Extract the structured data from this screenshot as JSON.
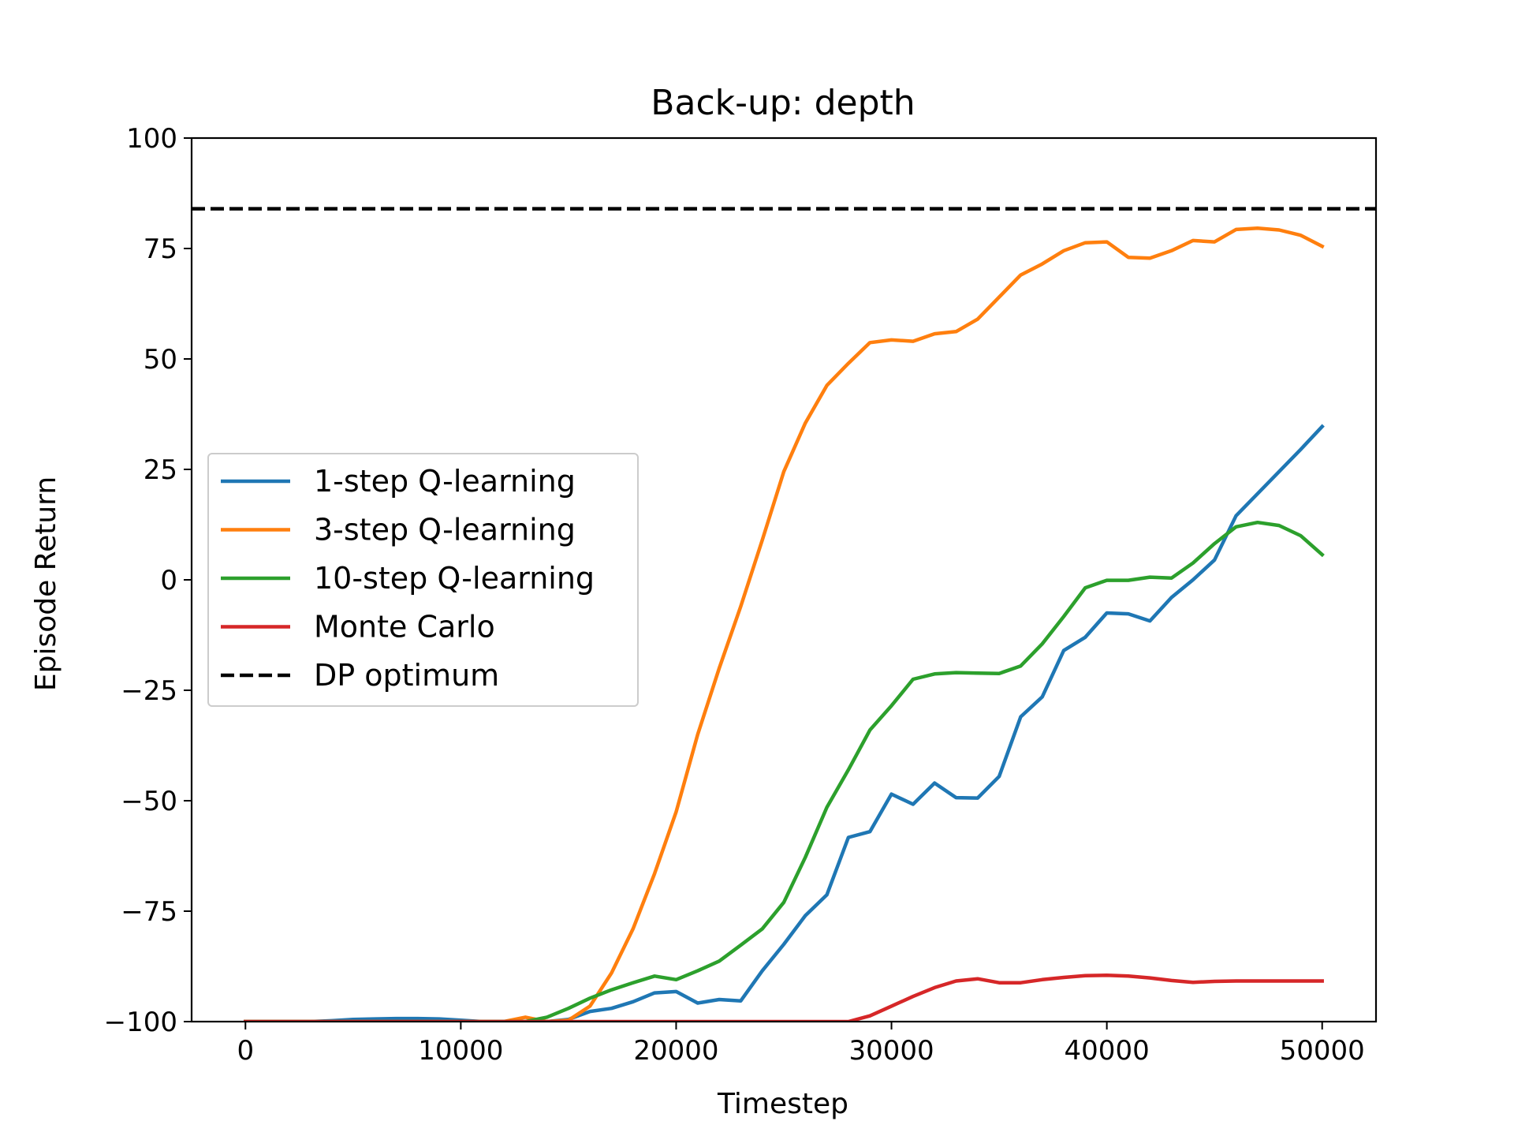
{
  "chart_data": {
    "type": "line",
    "title": "Back-up: depth",
    "xlabel": "Timestep",
    "ylabel": "Episode Return",
    "xlim": [
      -2500,
      52500
    ],
    "ylim": [
      -100,
      100
    ],
    "xticks": [
      0,
      10000,
      20000,
      30000,
      40000,
      50000
    ],
    "yticks": [
      -100,
      -75,
      -50,
      -25,
      0,
      25,
      50,
      75,
      100
    ],
    "xtick_labels": [
      "0",
      "10000",
      "20000",
      "30000",
      "40000",
      "50000"
    ],
    "ytick_labels": [
      "−100",
      "−75",
      "−50",
      "−25",
      "0",
      "25",
      "50",
      "75",
      "100"
    ],
    "grid": false,
    "legend_position": "center-left",
    "x": [
      0,
      1000,
      2000,
      3000,
      4000,
      5000,
      6000,
      7000,
      8000,
      9000,
      10000,
      11000,
      12000,
      13000,
      14000,
      15000,
      16000,
      17000,
      18000,
      19000,
      20000,
      21000,
      22000,
      23000,
      24000,
      25000,
      26000,
      27000,
      28000,
      29000,
      30000,
      31000,
      32000,
      33000,
      34000,
      35000,
      36000,
      37000,
      38000,
      39000,
      40000,
      41000,
      42000,
      43000,
      44000,
      45000,
      46000,
      47000,
      48000,
      49000,
      50000
    ],
    "series": [
      {
        "name": "1-step Q-learning",
        "color": "#1f77b4",
        "style": "solid",
        "values": [
          -100,
          -100,
          -100,
          -100,
          -99.8,
          -99.5,
          -99.4,
          -99.3,
          -99.3,
          -99.4,
          -99.7,
          -100,
          -100,
          -100,
          -100,
          -99.5,
          -97.7,
          -97,
          -95.5,
          -93.5,
          -93.2,
          -95.8,
          -95,
          -95.3,
          -88.5,
          -82.5,
          -76,
          -71.3,
          -58.3,
          -57,
          -48.5,
          -50.8,
          -46,
          -49.3,
          -49.4,
          -44.5,
          -31,
          -26.5,
          -16,
          -13,
          -7.5,
          -7.7,
          -9.3,
          -4,
          0,
          4.5,
          14.5,
          19.5,
          24.5,
          29.5,
          34.7
        ]
      },
      {
        "name": "3-step Q-learning",
        "color": "#ff7f0e",
        "style": "solid",
        "values": [
          -100,
          -100,
          -100,
          -100,
          -100,
          -100,
          -100,
          -100,
          -100,
          -100,
          -100,
          -100,
          -100,
          -99,
          -100,
          -99.7,
          -96.5,
          -89,
          -79,
          -66.5,
          -52.5,
          -35,
          -20,
          -6,
          9,
          24.5,
          35.5,
          44,
          49,
          53.7,
          54.3,
          54,
          55.7,
          56.2,
          59,
          64,
          69,
          71.5,
          74.5,
          76.3,
          76.5,
          73,
          72.8,
          74.5,
          76.8,
          76.5,
          79.3,
          79.6,
          79.2,
          78,
          75.5
        ]
      },
      {
        "name": "10-step Q-learning",
        "color": "#2ca02c",
        "style": "solid",
        "values": [
          -100,
          -100,
          -100,
          -100,
          -100,
          -100,
          -100,
          -100,
          -100,
          -100,
          -100,
          -100,
          -100,
          -100,
          -99,
          -97,
          -94.7,
          -92.8,
          -91.2,
          -89.7,
          -90.5,
          -88.5,
          -86.3,
          -82.7,
          -79,
          -73,
          -62.8,
          -51.5,
          -43,
          -34,
          -28.5,
          -22.5,
          -21.3,
          -21,
          -21.1,
          -21.2,
          -19.5,
          -14.5,
          -8.3,
          -1.8,
          -0.1,
          -0.1,
          0.6,
          0.4,
          3.8,
          8.2,
          12,
          13,
          12.3,
          10,
          5.7
        ]
      },
      {
        "name": "Monte Carlo",
        "color": "#d62728",
        "style": "solid",
        "values": [
          -100,
          -100,
          -100,
          -100,
          -100,
          -100,
          -100,
          -100,
          -100,
          -100,
          -100,
          -100,
          -100,
          -100,
          -100,
          -100,
          -100,
          -100,
          -100,
          -100,
          -100,
          -100,
          -100,
          -100,
          -100,
          -100,
          -100,
          -100,
          -100,
          -98.7,
          -96.5,
          -94.3,
          -92.3,
          -90.8,
          -90.3,
          -91.2,
          -91.2,
          -90.5,
          -90,
          -89.6,
          -89.5,
          -89.7,
          -90.1,
          -90.7,
          -91.1,
          -90.9,
          -90.8,
          -90.8,
          -90.8,
          -90.8,
          -90.8
        ]
      },
      {
        "name": "DP optimum",
        "color": "#000000",
        "style": "dashed",
        "constant": 84
      }
    ]
  }
}
